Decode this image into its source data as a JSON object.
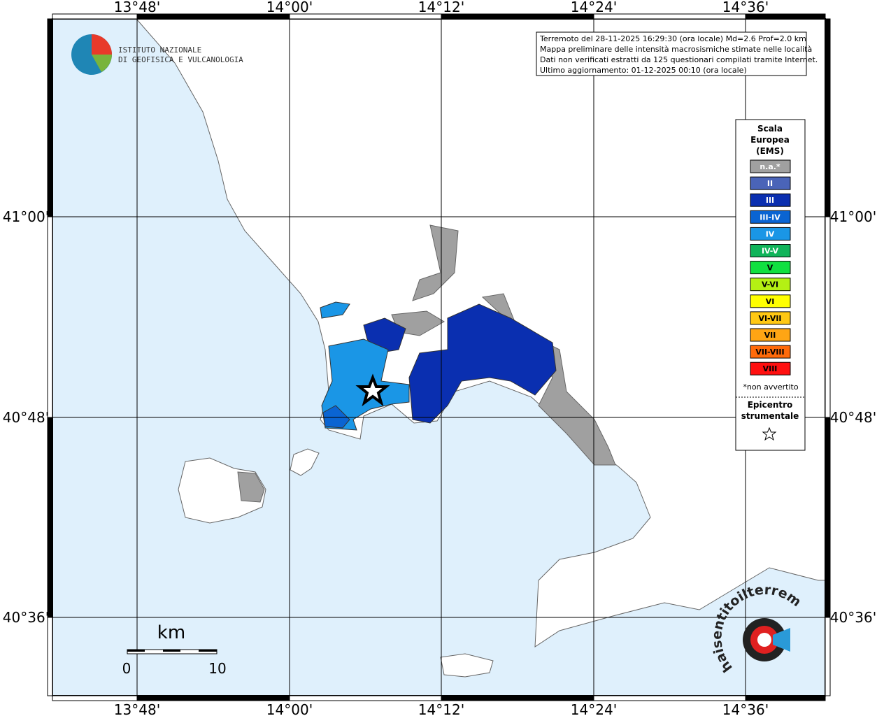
{
  "map": {
    "lon_labels": [
      "13°48'",
      "14°00'",
      "14°12'",
      "14°24'",
      "14°36'"
    ],
    "lat_labels": [
      "41°00'",
      "40°48'",
      "40°36'"
    ]
  },
  "info_box": {
    "lines": [
      "Terremoto del 28-11-2025 16:29:30 (ora locale) Md=2.6 Prof=2.0 km",
      "Mappa preliminare delle intensità macrosismiche stimate nelle località",
      "Dati non verificati estratti da 125 questionari compilati tramite Internet.",
      "Ultimo aggiornamento: 01-12-2025 00:10 (ora locale)"
    ]
  },
  "logo": {
    "lines": [
      "ISTITUTO NAZIONALE",
      "DI GEOFISICA E VULCANOLOGIA"
    ]
  },
  "legend": {
    "title_lines": [
      "Scala",
      "Europea",
      "(EMS)"
    ],
    "items": [
      {
        "label": "n.a.*",
        "color": "#a0a0a0"
      },
      {
        "label": "II",
        "color": "#4a64b8"
      },
      {
        "label": "III",
        "color": "#0a2fb0"
      },
      {
        "label": "III-IV",
        "color": "#0a64d2"
      },
      {
        "label": "IV",
        "color": "#1a96e6"
      },
      {
        "label": "IV-V",
        "color": "#10b45a"
      },
      {
        "label": "V",
        "color": "#10e040"
      },
      {
        "label": "V-VI",
        "color": "#b4f014"
      },
      {
        "label": "VI",
        "color": "#ffff00"
      },
      {
        "label": "VI-VII",
        "color": "#ffc814"
      },
      {
        "label": "VII",
        "color": "#ffa514"
      },
      {
        "label": "VII-VIII",
        "color": "#ff6a0a"
      },
      {
        "label": "VIII",
        "color": "#ff1010"
      }
    ],
    "note": "*non avvertito",
    "epicenter_lines": [
      "Epicentro",
      "strumentale"
    ]
  },
  "scale_bar": {
    "unit": "km",
    "labels": [
      "0",
      "10"
    ]
  },
  "watermark": "haisentitoilterremoto.it"
}
